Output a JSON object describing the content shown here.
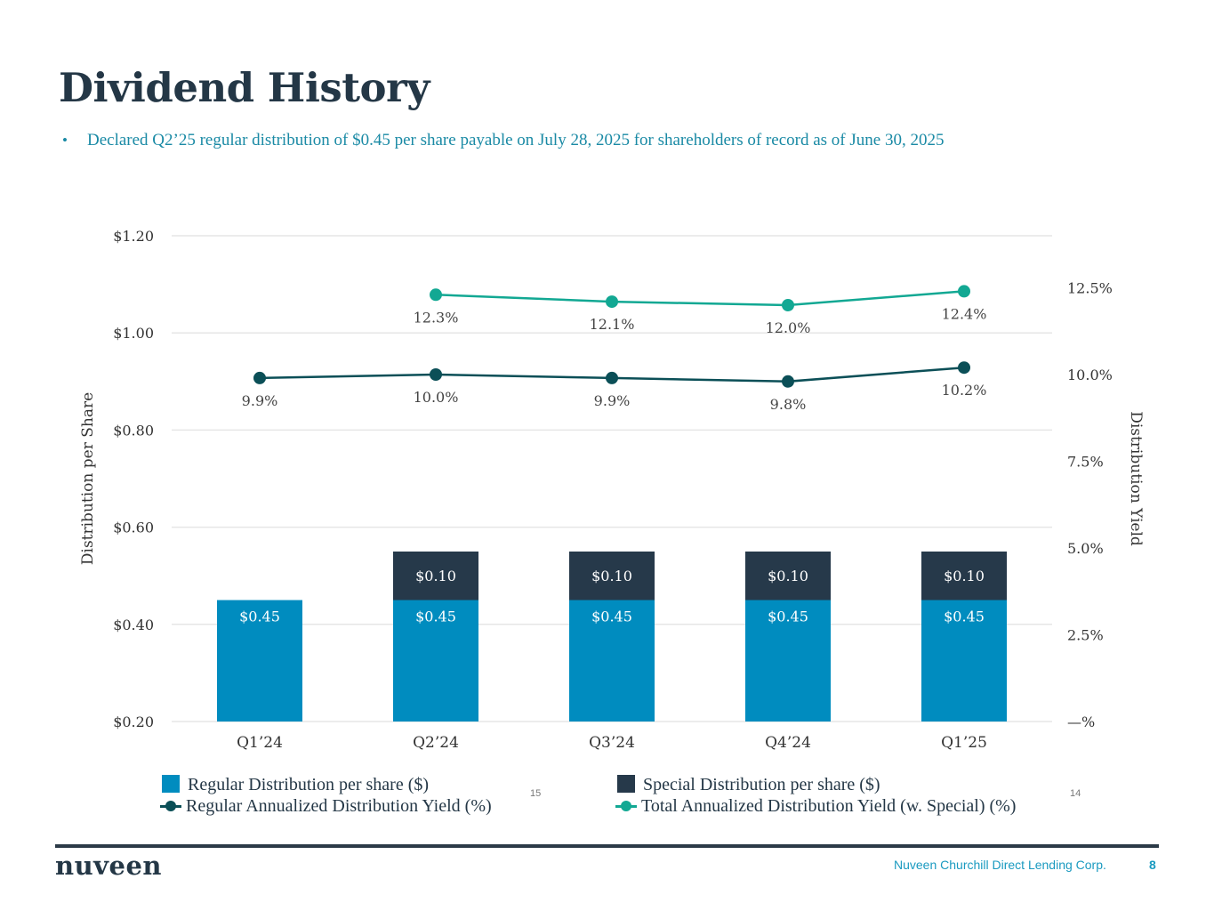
{
  "page": {
    "title": "Dividend History",
    "bullet_marker": "•",
    "bullet_text": "Declared Q2’25 regular distribution of $0.45 per share payable on July 28, 2025 for shareholders of record as of June 30, 2025"
  },
  "colors": {
    "title": "#243746",
    "bullet": "#1a8aa5",
    "regular_bar": "#008cbf",
    "special_bar": "#26394a",
    "regular_yield_line": "#0b4f57",
    "total_yield_line": "#12a893",
    "grid": "#e6e6e6",
    "axis_text": "#333333",
    "footer_text": "#1a9ac0"
  },
  "chart_data": {
    "type": "bar+line",
    "categories": [
      "Q1’24",
      "Q2’24",
      "Q3’24",
      "Q4’24",
      "Q1’25"
    ],
    "series": [
      {
        "name": "Regular Distribution per share ($)",
        "type": "bar",
        "axis": "left",
        "stack": "dist",
        "values": [
          0.45,
          0.45,
          0.45,
          0.45,
          0.45
        ],
        "labels": [
          "$0.45",
          "$0.45",
          "$0.45",
          "$0.45",
          "$0.45"
        ]
      },
      {
        "name": "Special Distribution per share ($)",
        "type": "bar",
        "axis": "left",
        "stack": "dist",
        "values": [
          null,
          0.1,
          0.1,
          0.1,
          0.1
        ],
        "labels": [
          null,
          "$0.10",
          "$0.10",
          "$0.10",
          "$0.10"
        ]
      },
      {
        "name": "Regular Annualized Distribution Yield (%)",
        "type": "line",
        "axis": "right",
        "values": [
          9.9,
          10.0,
          9.9,
          9.8,
          10.2
        ],
        "labels": [
          "9.9%",
          "10.0%",
          "9.9%",
          "9.8%",
          "10.2%"
        ]
      },
      {
        "name": "Total Annualized Distribution Yield (w. Special) (%)",
        "type": "line",
        "axis": "right",
        "values": [
          null,
          12.3,
          12.1,
          12.0,
          12.4
        ],
        "labels": [
          null,
          "12.3%",
          "12.1%",
          "12.0%",
          "12.4%"
        ]
      }
    ],
    "ylabel_left": "Distribution per Share",
    "ylabel_right": "Distribution Yield",
    "ylim_left": [
      0.2,
      1.2
    ],
    "yticks_left": [
      0.2,
      0.4,
      0.6,
      0.8,
      1.0,
      1.2
    ],
    "yticklabels_left": [
      "$0.20",
      "$0.40",
      "$0.60",
      "$0.80",
      "$1.00",
      "$1.20"
    ],
    "ylim_right": [
      0,
      12.5
    ],
    "yticks_right": [
      0,
      2.5,
      5.0,
      7.5,
      10.0,
      12.5
    ],
    "yticklabels_right": [
      "—%",
      "2.5%",
      "5.0%",
      "7.5%",
      "10.0%",
      "12.5%"
    ],
    "grid": true,
    "legend_position": "bottom",
    "legend": [
      {
        "label": "Regular Distribution per share ($)",
        "marker": "square",
        "footnote": ""
      },
      {
        "label": "Special Distribution per share ($)",
        "marker": "square",
        "footnote": ""
      },
      {
        "label": "Regular Annualized Distribution Yield (%)",
        "marker": "line-dot",
        "footnote": "15"
      },
      {
        "label": "Total Annualized Distribution Yield (w. Special) (%)",
        "marker": "line-dot",
        "footnote": "14"
      }
    ]
  },
  "footer": {
    "logo": "nuveen",
    "company": "Nuveen Churchill Direct Lending Corp.",
    "page_number": "8"
  }
}
